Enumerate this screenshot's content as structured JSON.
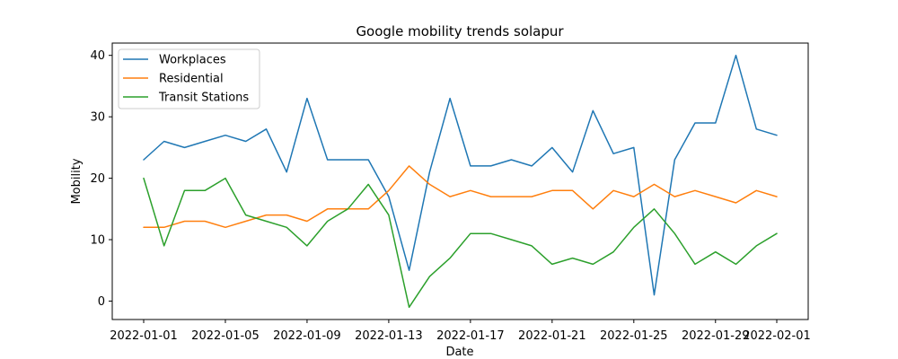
{
  "chart_data": {
    "type": "line",
    "title": "Google mobility trends solapur",
    "xlabel": "Date",
    "ylabel": "Mobility",
    "x": [
      "2022-01-01",
      "2022-01-02",
      "2022-01-03",
      "2022-01-04",
      "2022-01-05",
      "2022-01-06",
      "2022-01-07",
      "2022-01-08",
      "2022-01-09",
      "2022-01-10",
      "2022-01-11",
      "2022-01-12",
      "2022-01-13",
      "2022-01-14",
      "2022-01-15",
      "2022-01-16",
      "2022-01-17",
      "2022-01-18",
      "2022-01-19",
      "2022-01-20",
      "2022-01-21",
      "2022-01-22",
      "2022-01-23",
      "2022-01-24",
      "2022-01-25",
      "2022-01-26",
      "2022-01-27",
      "2022-01-28",
      "2022-01-29",
      "2022-01-30",
      "2022-01-31",
      "2022-02-01"
    ],
    "xticks": [
      "2022-01-01",
      "2022-01-05",
      "2022-01-09",
      "2022-01-13",
      "2022-01-17",
      "2022-01-21",
      "2022-01-25",
      "2022-01-29",
      "2022-02-01"
    ],
    "yticks": [
      0,
      10,
      20,
      30,
      40
    ],
    "ylim": [
      -3,
      42
    ],
    "grid": false,
    "legend": "top-left",
    "series": [
      {
        "name": "Workplaces",
        "color": "#1f77b4",
        "values": [
          23,
          26,
          25,
          26,
          27,
          26,
          28,
          21,
          33,
          23,
          23,
          23,
          17,
          5,
          21,
          33,
          22,
          22,
          23,
          22,
          25,
          21,
          31,
          24,
          25,
          1,
          23,
          29,
          29,
          40,
          28,
          27
        ]
      },
      {
        "name": "Residential",
        "color": "#ff7f0e",
        "values": [
          12,
          12,
          13,
          13,
          12,
          13,
          14,
          14,
          13,
          15,
          15,
          15,
          18,
          22,
          19,
          17,
          18,
          17,
          17,
          17,
          18,
          18,
          15,
          18,
          17,
          19,
          17,
          18,
          17,
          16,
          18,
          17
        ]
      },
      {
        "name": "Transit Stations",
        "color": "#2ca02c",
        "values": [
          20,
          9,
          18,
          18,
          20,
          14,
          13,
          12,
          9,
          13,
          15,
          19,
          14,
          -1,
          4,
          7,
          11,
          11,
          10,
          9,
          6,
          7,
          6,
          8,
          12,
          15,
          11,
          6,
          8,
          6,
          9,
          11
        ]
      }
    ]
  }
}
